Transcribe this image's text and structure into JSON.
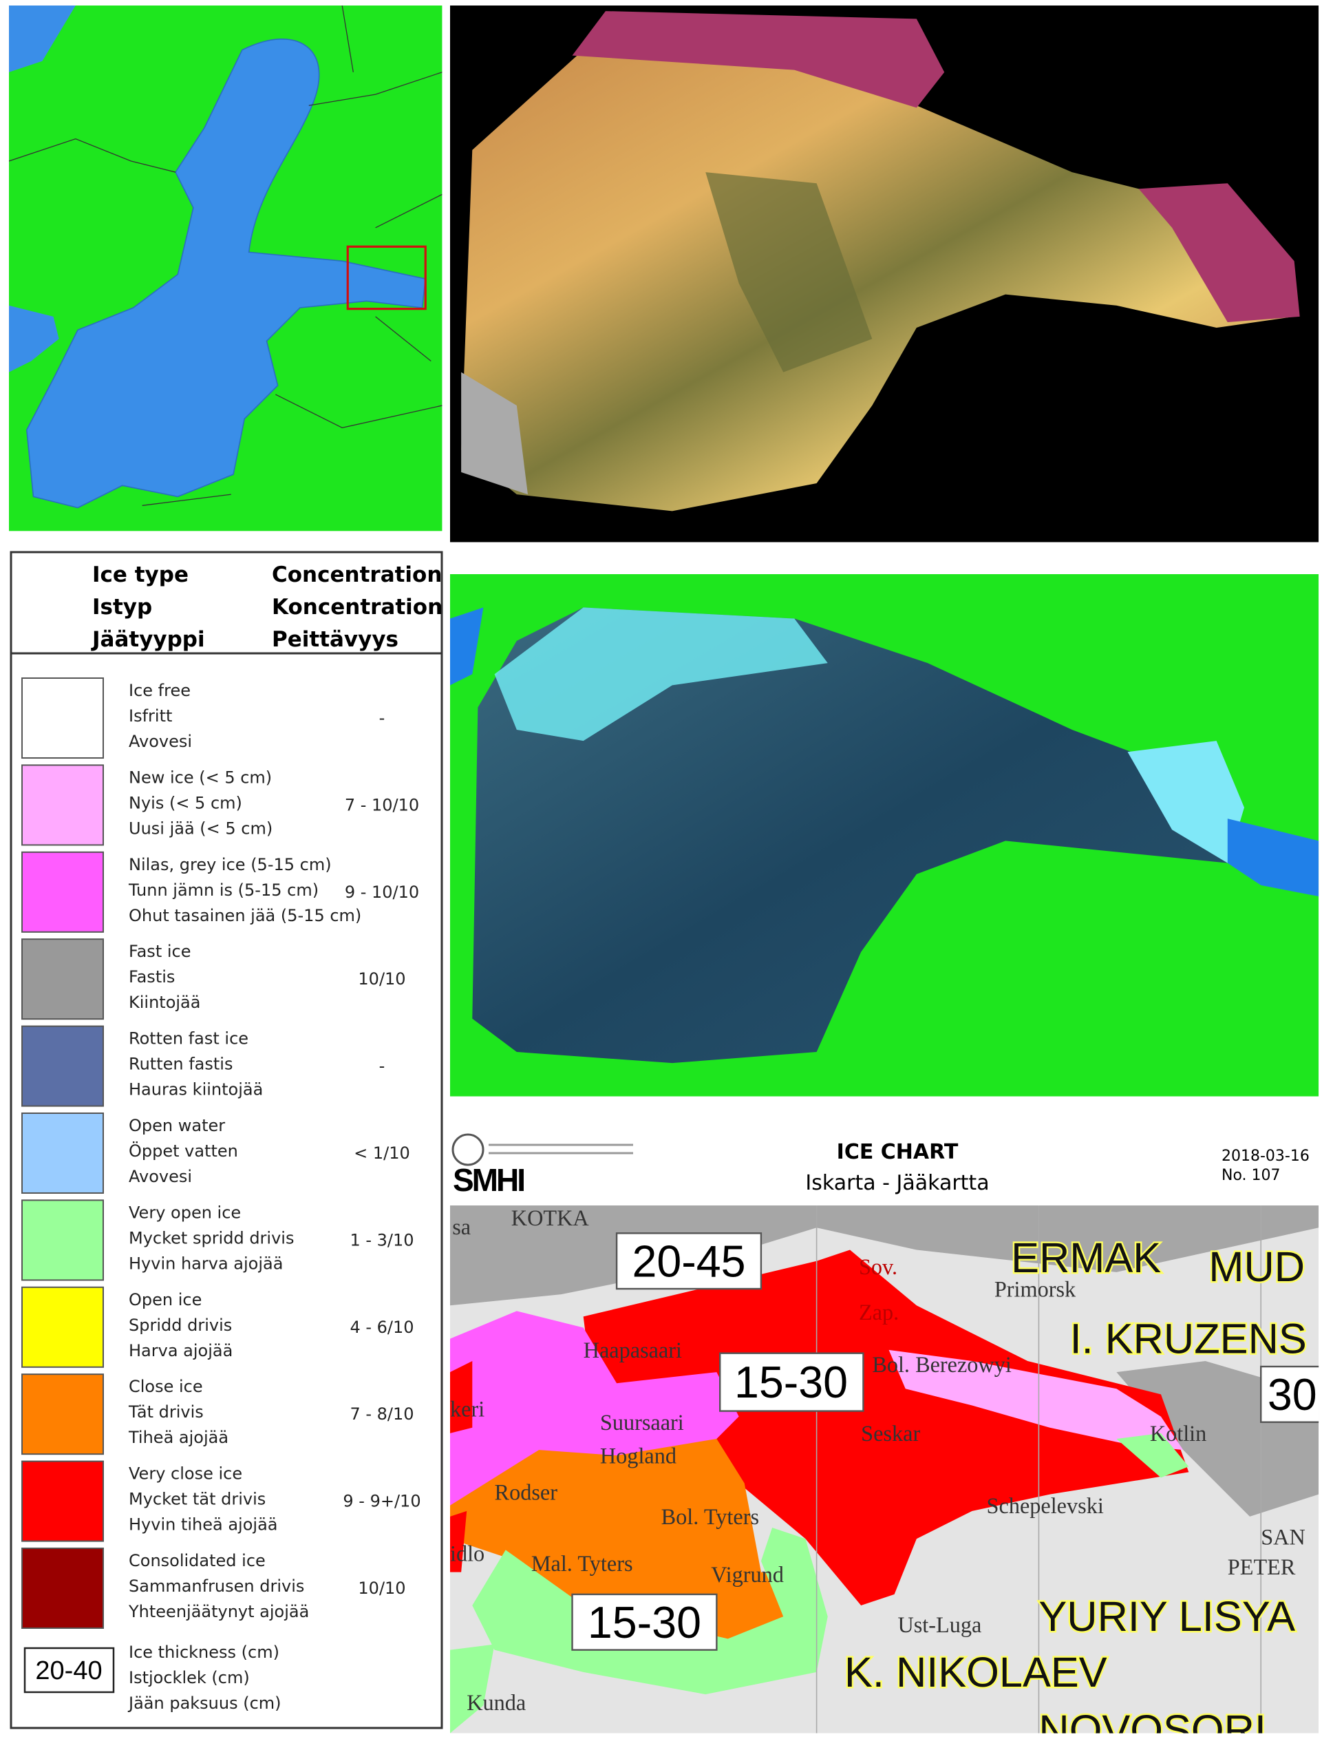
{
  "legend": {
    "headers": {
      "ice_type": [
        "Ice type",
        "Istyp",
        "Jäätyyppi"
      ],
      "concentration": [
        "Concentration",
        "Koncentration",
        "Peittävyys"
      ]
    },
    "rows": [
      {
        "names": [
          "Ice free",
          "Isfritt",
          "Avovesi"
        ],
        "concentration": "-",
        "color": "#ffffff"
      },
      {
        "names": [
          "New ice (< 5 cm)",
          "Nyis (< 5 cm)",
          "Uusi jää (< 5 cm)"
        ],
        "concentration": "7 - 10/10",
        "color": "#ffaaff"
      },
      {
        "names": [
          "Nilas, grey ice (5-15 cm)",
          "Tunn jämn is (5-15 cm)",
          "Ohut tasainen jää (5-15 cm)"
        ],
        "concentration": "9 - 10/10",
        "color": "#ff5cff"
      },
      {
        "names": [
          "Fast ice",
          "Fastis",
          "Kiintojää"
        ],
        "concentration": "10/10",
        "color": "#999999"
      },
      {
        "names": [
          "Rotten fast ice",
          "Rutten fastis",
          "Hauras kiintojää"
        ],
        "concentration": "-",
        "color": "#5b6fa6"
      },
      {
        "names": [
          "Open water",
          "Öppet vatten",
          "Avovesi"
        ],
        "concentration": "< 1/10",
        "color": "#99ccff"
      },
      {
        "names": [
          "Very open ice",
          "Mycket spridd drivis",
          "Hyvin harva ajojää"
        ],
        "concentration": "1 - 3/10",
        "color": "#99ff99"
      },
      {
        "names": [
          "Open ice",
          "Spridd drivis",
          "Harva ajojää"
        ],
        "concentration": "4 - 6/10",
        "color": "#ffff00"
      },
      {
        "names": [
          "Close ice",
          "Tät drivis",
          "Tiheä ajojää"
        ],
        "concentration": "7 - 8/10",
        "color": "#ff8000"
      },
      {
        "names": [
          "Very close ice",
          "Mycket tät drivis",
          "Hyvin tiheä ajojää"
        ],
        "concentration": "9 - 9+/10",
        "color": "#ff0000"
      },
      {
        "names": [
          "Consolidated ice",
          "Sammanfrusen drivis",
          "Yhteenjäätynyt ajojää"
        ],
        "concentration": "10/10",
        "color": "#990000"
      }
    ],
    "thickness": {
      "sample": "20-40",
      "names": [
        "Ice thickness (cm)",
        "Istjocklek (cm)",
        "Jään paksuus (cm)"
      ]
    }
  },
  "ice_chart": {
    "logo": "SMHI",
    "title": "ICE CHART",
    "subtitle": "Iskarta - Jääkartta",
    "date": "2018-03-16",
    "number": "No. 107",
    "thickness_labels": [
      "20-45",
      "15-30",
      "15-30",
      "30"
    ],
    "places": [
      "KOTKA",
      "sa",
      "Sov.",
      "Zap.",
      "Primorsk",
      "Haapasaari",
      "Bol. Berezowyi",
      "keri",
      "Suursaari",
      "Hogland",
      "Seskar",
      "Kotlin",
      "Rodser",
      "Bol. Tyters",
      "Schepelevski",
      "idlo",
      "Mal. Tyters",
      "Vigrund",
      "SAN",
      "PETER",
      "Ust-Luga",
      "Kunda"
    ],
    "icebreakers": [
      "ERMAK",
      "MUD",
      "I. KRUZENS",
      "YURIY LISYA",
      "K. NIKOLAEV",
      "NOVOSORI"
    ]
  }
}
